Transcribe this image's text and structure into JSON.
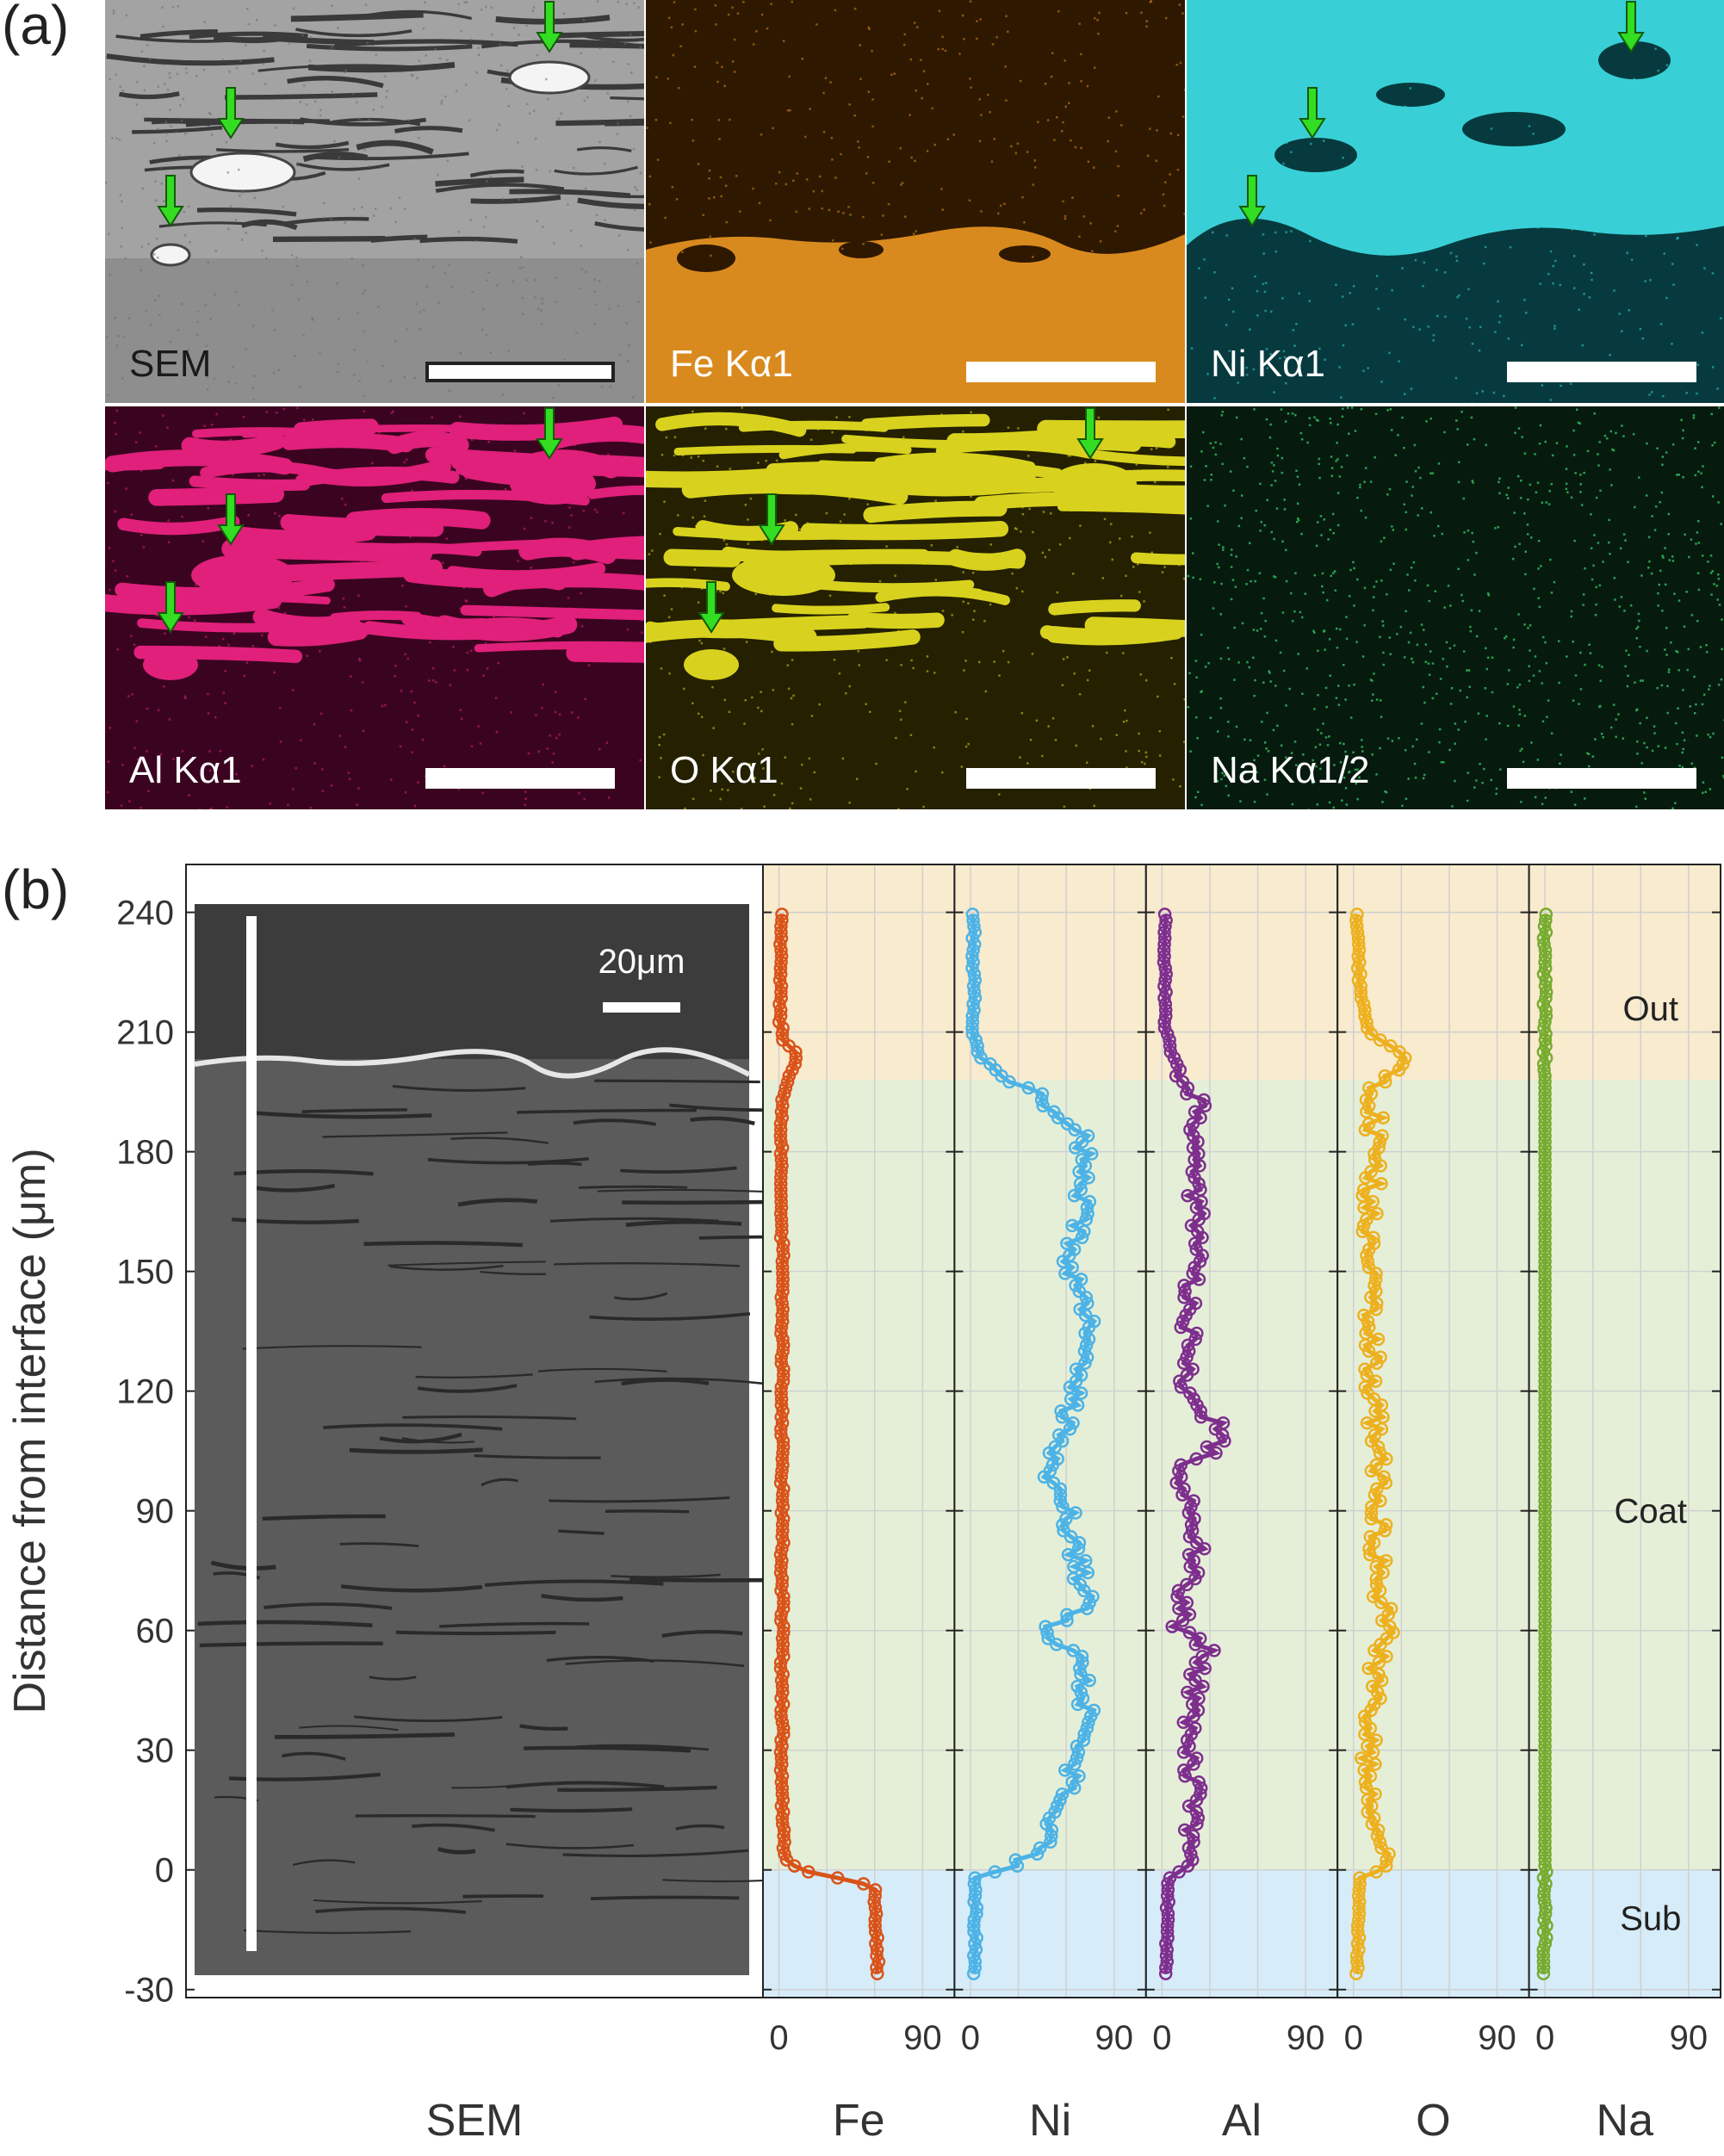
{
  "panel_a": {
    "label": "(a)",
    "tiles": [
      {
        "name": "sem",
        "label": "SEM",
        "bg": "#8e8e8e",
        "fg": "#d8d8d8",
        "label_dark": true
      },
      {
        "name": "fe",
        "label": "Fe Kα1",
        "bg": "#2e1800",
        "fg": "#d98a1e",
        "label_dark": false
      },
      {
        "name": "ni",
        "label": "Ni Kα1",
        "bg": "#063a3e",
        "fg": "#38d0d6",
        "label_dark": false
      },
      {
        "name": "al",
        "label": "Al Kα1",
        "bg": "#3a0420",
        "fg": "#e0207a",
        "label_dark": false
      },
      {
        "name": "o",
        "label": "O Kα1",
        "bg": "#242000",
        "fg": "#d8d21e",
        "label_dark": false
      },
      {
        "name": "na",
        "label": "Na Kα1/2",
        "bg": "#061a0e",
        "fg": "#2fae58",
        "label_dark": false
      }
    ],
    "arrow_color": "#33dd22"
  },
  "panel_b": {
    "label": "(b)",
    "sem_scale_label": "20μm",
    "sem_column_title": "SEM",
    "regions": [
      {
        "label": "Out",
        "color": "#f8ebce",
        "from": 198,
        "to": 252
      },
      {
        "label": "Coat",
        "color": "#e5efd8",
        "from": 0,
        "to": 198
      },
      {
        "label": "Sub",
        "color": "#d6ecf8",
        "from": -32,
        "to": 0
      }
    ]
  },
  "chart_data": {
    "type": "scatter",
    "ylabel": "Distance from interface (μm)",
    "ylim": [
      -32,
      252
    ],
    "yticks": [
      -30,
      0,
      30,
      60,
      90,
      120,
      150,
      180,
      210,
      240
    ],
    "xlim": [
      -10,
      110
    ],
    "xticks": [
      0,
      90
    ],
    "grid": true,
    "series": [
      {
        "name": "Fe",
        "color": "#d95319",
        "profile": [
          [
            -26,
            62
          ],
          [
            -10,
            60
          ],
          [
            -4,
            60
          ],
          [
            0,
            12
          ],
          [
            2,
            6
          ],
          [
            5,
            3
          ],
          [
            20,
            2
          ],
          [
            100,
            2
          ],
          [
            190,
            2
          ],
          [
            197,
            4
          ],
          [
            200,
            8
          ],
          [
            204,
            12
          ],
          [
            208,
            3
          ],
          [
            212,
            1
          ],
          [
            240,
            1
          ]
        ]
      },
      {
        "name": "Ni",
        "color": "#4db3e6",
        "profile": [
          [
            -26,
            3
          ],
          [
            -2,
            3
          ],
          [
            0,
            20
          ],
          [
            4,
            42
          ],
          [
            10,
            52
          ],
          [
            20,
            62
          ],
          [
            40,
            72
          ],
          [
            55,
            68
          ],
          [
            60,
            40
          ],
          [
            65,
            72
          ],
          [
            80,
            66
          ],
          [
            92,
            60
          ],
          [
            100,
            44
          ],
          [
            110,
            60
          ],
          [
            125,
            68
          ],
          [
            140,
            74
          ],
          [
            152,
            62
          ],
          [
            170,
            70
          ],
          [
            185,
            72
          ],
          [
            195,
            40
          ],
          [
            200,
            18
          ],
          [
            204,
            6
          ],
          [
            210,
            2
          ],
          [
            240,
            2
          ]
        ]
      },
      {
        "name": "Al",
        "color": "#7e2f8e",
        "profile": [
          [
            -26,
            2
          ],
          [
            -2,
            4
          ],
          [
            0,
            12
          ],
          [
            10,
            20
          ],
          [
            30,
            18
          ],
          [
            50,
            22
          ],
          [
            55,
            30
          ],
          [
            60,
            10
          ],
          [
            80,
            22
          ],
          [
            100,
            10
          ],
          [
            108,
            42
          ],
          [
            120,
            16
          ],
          [
            140,
            18
          ],
          [
            160,
            22
          ],
          [
            180,
            20
          ],
          [
            192,
            26
          ],
          [
            198,
            14
          ],
          [
            204,
            6
          ],
          [
            212,
            2
          ],
          [
            240,
            2
          ]
        ]
      },
      {
        "name": "O",
        "color": "#edb120",
        "profile": [
          [
            -26,
            2
          ],
          [
            -2,
            4
          ],
          [
            0,
            18
          ],
          [
            10,
            14
          ],
          [
            30,
            10
          ],
          [
            50,
            12
          ],
          [
            60,
            20
          ],
          [
            80,
            14
          ],
          [
            100,
            16
          ],
          [
            120,
            12
          ],
          [
            150,
            10
          ],
          [
            180,
            12
          ],
          [
            196,
            14
          ],
          [
            200,
            28
          ],
          [
            204,
            32
          ],
          [
            210,
            10
          ],
          [
            220,
            4
          ],
          [
            240,
            2
          ]
        ]
      },
      {
        "name": "Na",
        "color": "#77ac30",
        "profile": [
          [
            -26,
            0
          ],
          [
            240,
            0
          ]
        ]
      }
    ]
  }
}
